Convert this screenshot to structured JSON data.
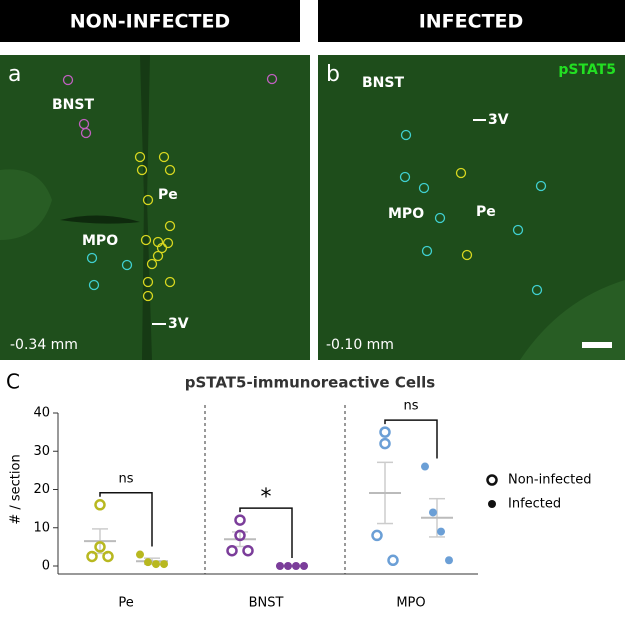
{
  "panels": [
    {
      "header": "NON-INFECTED",
      "letter": "a",
      "labels": [
        "BNST",
        "Pe",
        "MPO",
        "3V"
      ],
      "position": "-0.34 mm"
    },
    {
      "header": "INFECTED",
      "letter": "b",
      "marker": "pSTAT5",
      "labels": [
        "BNST",
        "3V",
        "MPO",
        "Pe"
      ],
      "position": "-0.10 mm"
    }
  ],
  "chart_data": {
    "type": "dot",
    "letter": "C",
    "title": "pSTAT5-immunoreactive Cells",
    "y_label": "# / section",
    "categories": [
      "Pe",
      "BNST",
      "MPO"
    ],
    "colors": [
      "#b8b820",
      "#7b3d9a",
      "#6b9fd6"
    ],
    "ylim": [
      0,
      40
    ],
    "yticks": [
      0,
      10,
      20,
      30,
      40
    ],
    "series": [
      {
        "name": "Non-infected",
        "marker": "open",
        "values": [
          [
            16,
            5,
            2.5,
            2.5
          ],
          [
            12,
            8,
            4,
            4
          ],
          [
            35,
            32,
            8,
            1.5
          ]
        ],
        "means": [
          6.5,
          7,
          19.1
        ],
        "sem": [
          3.2,
          1.9,
          8
        ]
      },
      {
        "name": "Infected",
        "marker": "filled",
        "values": [
          [
            3,
            1,
            0.5,
            0.5
          ],
          [
            0,
            0,
            0,
            0
          ],
          [
            26,
            14,
            9,
            1.5
          ]
        ],
        "means": [
          1.25,
          0,
          12.6
        ],
        "sem": [
          0.8,
          0,
          5
        ]
      }
    ],
    "annotations": [
      "ns",
      "*",
      "ns"
    ]
  }
}
